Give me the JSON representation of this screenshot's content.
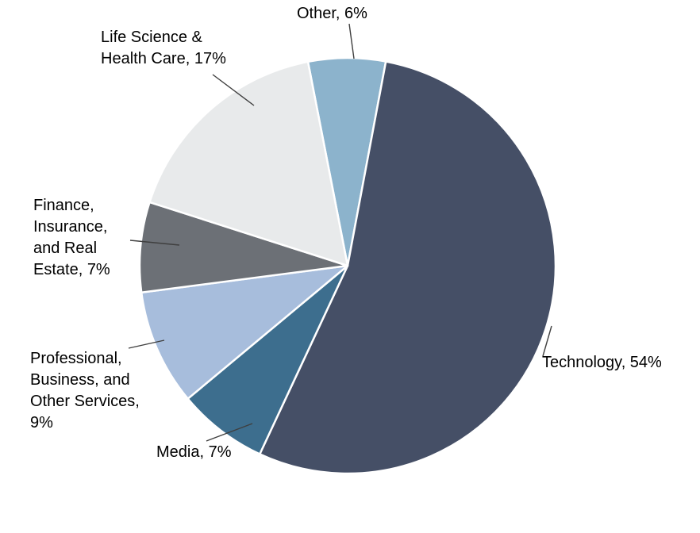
{
  "chart_data": {
    "type": "pie",
    "title": "",
    "legend": "none",
    "data_labels": "outside with leader lines",
    "background": "#ffffff",
    "start_angle_deg": -11,
    "total": 100,
    "segments": [
      {
        "label": "Other",
        "value": 6,
        "display": "Other, 6%",
        "color": "#8cb3cc"
      },
      {
        "label": "Technology",
        "value": 54,
        "display": "Technology, 54%",
        "color": "#454f66"
      },
      {
        "label": "Media",
        "value": 7,
        "display": "Media, 7%",
        "color": "#3d6e8e"
      },
      {
        "label": "Professional, Business, and Other Services",
        "value": 9,
        "display": "Professional,\nBusiness, and\nOther Services,\n9%",
        "color": "#a7bddc"
      },
      {
        "label": "Finance, Insurance, and Real Estate",
        "value": 7,
        "display": "Finance,\nInsurance,\nand Real\nEstate, 7%",
        "color": "#6c7076"
      },
      {
        "label": "Life Science & Health Care",
        "value": 17,
        "display": "Life Science &\nHealth Care, 17%",
        "color": "#e8eaeb"
      }
    ],
    "leader_line_color": "#3f3f3f"
  }
}
